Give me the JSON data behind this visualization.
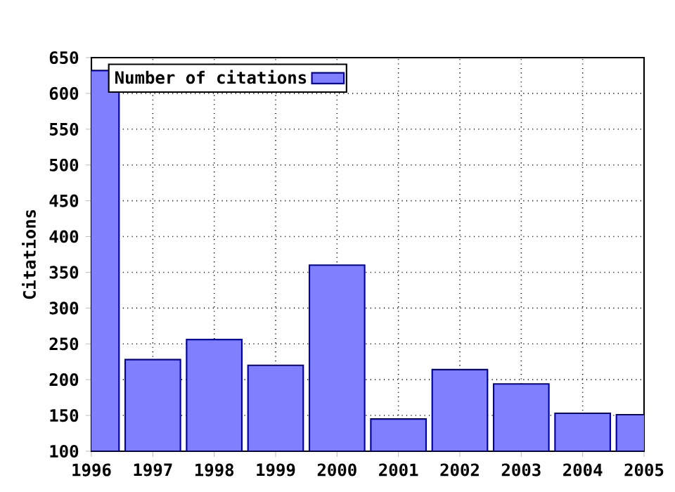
{
  "chart_data": {
    "type": "bar",
    "ylabel": "Citations",
    "x": [
      1996,
      1997,
      1998,
      1999,
      2000,
      2001,
      2002,
      2003,
      2004,
      2005
    ],
    "series": [
      {
        "name": "Number of citations",
        "color": "#8080ff",
        "values": [
          632,
          228,
          256,
          220,
          360,
          145,
          214,
          194,
          153,
          151
        ]
      }
    ],
    "xlim": [
      1996,
      2005
    ],
    "xticks": [
      1996,
      1997,
      1998,
      1999,
      2000,
      2001,
      2002,
      2003,
      2004,
      2005
    ],
    "ylim": [
      100,
      650
    ],
    "yticks": [
      100,
      150,
      200,
      250,
      300,
      350,
      400,
      450,
      500,
      550,
      600,
      650
    ],
    "grid": true,
    "legend": "top left"
  }
}
